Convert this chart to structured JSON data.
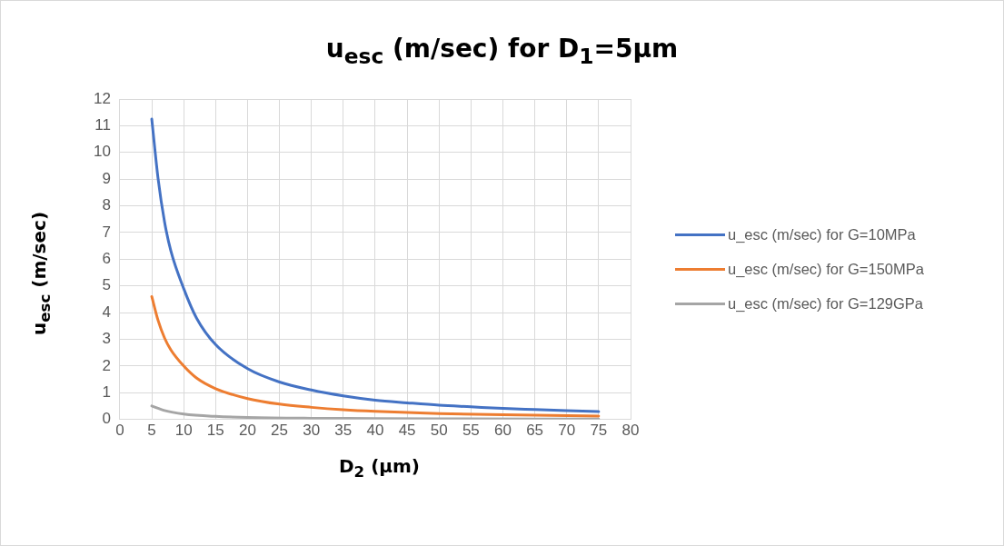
{
  "chart_data": {
    "type": "line",
    "title": "u$_{esc}$ (m/sec) for D$_{1}$=5μm",
    "xlabel": "D$_{2}$ (μm)",
    "ylabel": "u$_{esc}$ (m/sec)",
    "xlim": [
      0,
      80
    ],
    "xticks": [
      0,
      5,
      10,
      15,
      20,
      25,
      30,
      35,
      40,
      45,
      50,
      55,
      60,
      65,
      70,
      75,
      80
    ],
    "ylim": [
      0,
      12
    ],
    "yticks": [
      0,
      1,
      2,
      3,
      4,
      5,
      6,
      7,
      8,
      9,
      10,
      11,
      12
    ],
    "grid": true,
    "legend": "right",
    "marker": "none",
    "line_style": "solid",
    "series": [
      {
        "name": "u_esc (m/sec) for G=10MPa",
        "color": "#4472c4",
        "x": [
          5,
          6,
          7,
          8,
          10,
          12,
          15,
          20,
          25,
          30,
          35,
          40,
          45,
          50,
          55,
          60,
          65,
          70,
          75
        ],
        "values": [
          11.25,
          9.0,
          7.4,
          6.3,
          4.9,
          3.8,
          2.8,
          1.9,
          1.4,
          1.1,
          0.88,
          0.72,
          0.62,
          0.53,
          0.47,
          0.41,
          0.37,
          0.33,
          0.29
        ]
      },
      {
        "name": "u_esc (m/sec) for G=150MPa",
        "color": "#ed7d31",
        "x": [
          5,
          6,
          7,
          8,
          10,
          12,
          15,
          20,
          25,
          30,
          35,
          40,
          50,
          60,
          75
        ],
        "values": [
          4.6,
          3.7,
          3.05,
          2.6,
          2.0,
          1.55,
          1.15,
          0.78,
          0.57,
          0.45,
          0.36,
          0.3,
          0.22,
          0.17,
          0.12
        ]
      },
      {
        "name": "u_esc (m/sec) for G=129GPa",
        "color": "#a5a5a5",
        "x": [
          5,
          7,
          10,
          15,
          20,
          30,
          40,
          50,
          75
        ],
        "values": [
          0.5,
          0.33,
          0.2,
          0.11,
          0.07,
          0.04,
          0.03,
          0.02,
          0.01
        ]
      }
    ]
  }
}
